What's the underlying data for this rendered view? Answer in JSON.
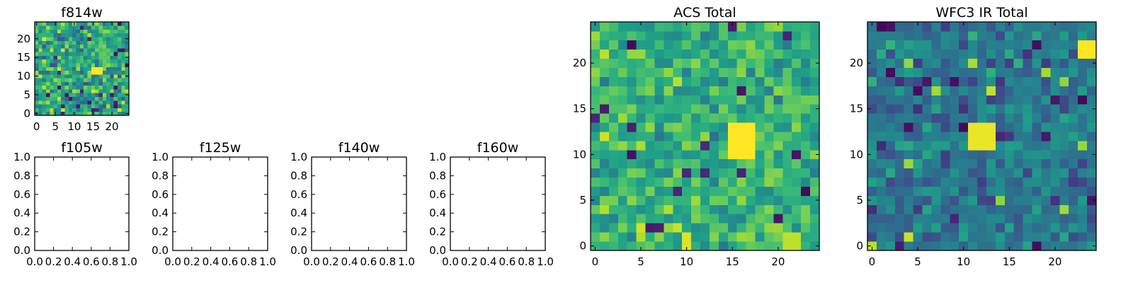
{
  "chart_data": [
    {
      "id": "f814w",
      "type": "heatmap",
      "title": "f814w",
      "grid": "25x25 pixel image",
      "xlim": [
        -0.5,
        24.5
      ],
      "ylim": [
        -0.5,
        24.5
      ],
      "xticks": [
        0,
        5,
        10,
        15,
        20
      ],
      "yticks": [
        0,
        5,
        10,
        15,
        20
      ],
      "colormap": "viridis",
      "noise_mean": 0.58,
      "noise_spread": 0.2,
      "sources": [
        {
          "x": 16,
          "y": 11.5,
          "w": 2,
          "h": 2,
          "value": 1.0
        }
      ]
    },
    {
      "id": "f105w",
      "type": "empty",
      "title": "f105w",
      "xlim": [
        0,
        1
      ],
      "ylim": [
        0,
        1
      ],
      "xticks": [
        "0.0",
        "0.2",
        "0.4",
        "0.6",
        "0.8",
        "1.0"
      ],
      "yticks": [
        "0.0",
        "0.2",
        "0.4",
        "0.6",
        "0.8",
        "1.0"
      ]
    },
    {
      "id": "f125w",
      "type": "empty",
      "title": "f125w",
      "xlim": [
        0,
        1
      ],
      "ylim": [
        0,
        1
      ],
      "xticks": [
        "0.0",
        "0.2",
        "0.4",
        "0.6",
        "0.8",
        "1.0"
      ],
      "yticks": [
        "0.0",
        "0.2",
        "0.4",
        "0.6",
        "0.8",
        "1.0"
      ]
    },
    {
      "id": "f140w",
      "type": "empty",
      "title": "f140w",
      "xlim": [
        0,
        1
      ],
      "ylim": [
        0,
        1
      ],
      "xticks": [
        "0.0",
        "0.2",
        "0.4",
        "0.6",
        "0.8",
        "1.0"
      ],
      "yticks": [
        "0.0",
        "0.2",
        "0.4",
        "0.6",
        "0.8",
        "1.0"
      ]
    },
    {
      "id": "f160w",
      "type": "empty",
      "title": "f160w",
      "xlim": [
        0,
        1
      ],
      "ylim": [
        0,
        1
      ],
      "xticks": [
        "0.0",
        "0.2",
        "0.4",
        "0.6",
        "0.8",
        "1.0"
      ],
      "yticks": [
        "0.0",
        "0.2",
        "0.4",
        "0.6",
        "0.8",
        "1.0"
      ]
    },
    {
      "id": "acs-total",
      "type": "heatmap",
      "title": "ACS Total",
      "grid": "25x25 pixel image",
      "xlim": [
        -0.5,
        24.5
      ],
      "ylim": [
        -0.5,
        24.5
      ],
      "xticks": [
        0,
        5,
        10,
        15,
        20
      ],
      "yticks": [
        0,
        5,
        10,
        15,
        20
      ],
      "colormap": "viridis",
      "noise_mean": 0.64,
      "noise_spread": 0.15,
      "sources": [
        {
          "x": 16,
          "y": 11.5,
          "w": 3,
          "h": 3,
          "value": 1.0
        },
        {
          "x": 10,
          "y": 0.5,
          "w": 1,
          "h": 2,
          "value": 0.95
        },
        {
          "x": 21.5,
          "y": 0.5,
          "w": 2,
          "h": 1,
          "value": 0.9
        }
      ]
    },
    {
      "id": "wfc3-ir-total",
      "type": "heatmap",
      "title": "WFC3 IR Total",
      "grid": "25x25 pixel image",
      "xlim": [
        -0.5,
        24.5
      ],
      "ylim": [
        -0.5,
        24.5
      ],
      "xticks": [
        0,
        5,
        10,
        15,
        20
      ],
      "yticks": [
        0,
        5,
        10,
        15,
        20
      ],
      "colormap": "viridis",
      "noise_mean": 0.4,
      "noise_spread": 0.14,
      "sources": [
        {
          "x": 12,
          "y": 12,
          "w": 2,
          "h": 2,
          "value": 0.97
        },
        {
          "x": 24,
          "y": 21.5,
          "w": 2,
          "h": 2,
          "value": 1.0
        }
      ]
    }
  ]
}
